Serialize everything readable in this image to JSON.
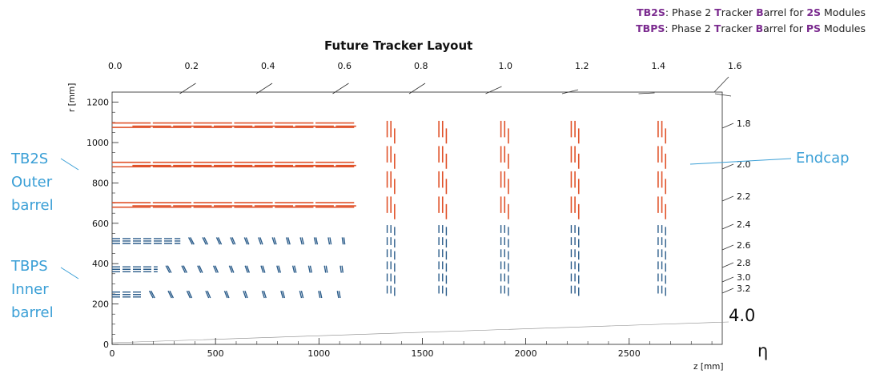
{
  "legend": {
    "line1": {
      "bold": "TB2S",
      "rest": ": Phase 2 ",
      "t": "T",
      "racker": "racker ",
      "b": "B",
      "arrel": "arrel for ",
      "mod": "2S",
      "tail": " Modules"
    },
    "line2": {
      "bold": "TBPS",
      "rest": ": Phase 2 ",
      "t": "T",
      "racker": "racker ",
      "b": "B",
      "arrel": "arrel for ",
      "mod": "PS",
      "tail": " Modules"
    }
  },
  "title": "Future Tracker Layout",
  "labels": {
    "tb2s": [
      "TB2S",
      "Outer",
      "barrel"
    ],
    "tbps": [
      "TBPS",
      "Inner",
      "barrel"
    ],
    "endcap": "Endcap",
    "eta_symbol": "η",
    "eta_max": "4.0"
  },
  "colors": {
    "outer": "#e0522a",
    "inner": "#2b5c8a",
    "annotation": "#3a9fd6",
    "axis": "#222222"
  },
  "chart_data": {
    "type": "scatter",
    "xlabel": "z [mm]",
    "ylabel": "r [mm]",
    "xlim": [
      0,
      2950
    ],
    "ylim": [
      0,
      1250
    ],
    "x_ticks": [
      0,
      500,
      1000,
      1500,
      2000,
      2500
    ],
    "y_ticks": [
      0,
      200,
      400,
      600,
      800,
      1000,
      1200
    ],
    "eta_top_ticks": [
      "0.0",
      "0.2",
      "0.4",
      "0.6",
      "0.8",
      "1.0",
      "1.2",
      "1.4",
      "1.6"
    ],
    "eta_right_ticks": [
      "1.8",
      "2.0",
      "2.2",
      "2.4",
      "2.6",
      "2.8",
      "3.0",
      "3.2"
    ],
    "outer_barrel_layers_r": [
      1085,
      890,
      690
    ],
    "outer_barrel_z_extent": [
      0,
      1180
    ],
    "inner_barrel_layers_r": [
      510,
      370,
      245
    ],
    "endcap_disks_z": [
      1330,
      1580,
      1880,
      2220,
      2640
    ],
    "endcap_outer_r_range": [
      620,
      1120
    ],
    "endcap_inner_r_range": [
      240,
      600
    ]
  }
}
